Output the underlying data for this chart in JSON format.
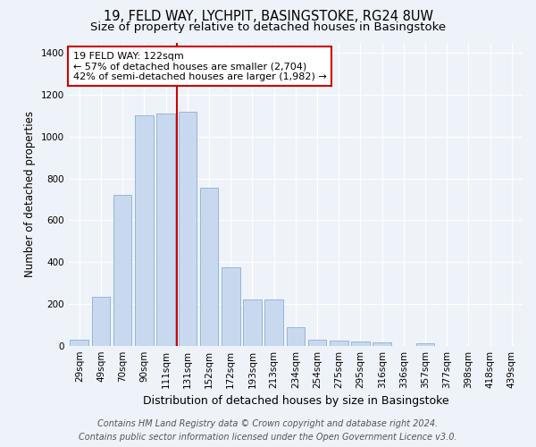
{
  "title": "19, FELD WAY, LYCHPIT, BASINGSTOKE, RG24 8UW",
  "subtitle": "Size of property relative to detached houses in Basingstoke",
  "xlabel": "Distribution of detached houses by size in Basingstoke",
  "ylabel": "Number of detached properties",
  "footer_line1": "Contains HM Land Registry data © Crown copyright and database right 2024.",
  "footer_line2": "Contains public sector information licensed under the Open Government Licence v3.0.",
  "bar_labels": [
    "29sqm",
    "49sqm",
    "70sqm",
    "90sqm",
    "111sqm",
    "131sqm",
    "152sqm",
    "172sqm",
    "193sqm",
    "213sqm",
    "234sqm",
    "254sqm",
    "275sqm",
    "295sqm",
    "316sqm",
    "336sqm",
    "357sqm",
    "377sqm",
    "398sqm",
    "418sqm",
    "439sqm"
  ],
  "bar_values": [
    30,
    235,
    720,
    1100,
    1110,
    1120,
    755,
    375,
    220,
    220,
    90,
    30,
    25,
    22,
    15,
    0,
    12,
    0,
    0,
    0,
    0
  ],
  "bar_color": "#c8d9ef",
  "bar_edge_color": "#8aaed4",
  "vline_color": "#cc0000",
  "annotation_line1": "19 FELD WAY: 122sqm",
  "annotation_line2": "← 57% of detached houses are smaller (2,704)",
  "annotation_line3": "42% of semi-detached houses are larger (1,982) →",
  "annotation_box_facecolor": "white",
  "annotation_box_edgecolor": "#cc0000",
  "ylim": [
    0,
    1450
  ],
  "yticks": [
    0,
    200,
    400,
    600,
    800,
    1000,
    1200,
    1400
  ],
  "title_fontsize": 10.5,
  "subtitle_fontsize": 9.5,
  "xlabel_fontsize": 9,
  "ylabel_fontsize": 8.5,
  "tick_fontsize": 7.5,
  "footer_fontsize": 7,
  "annotation_fontsize": 8,
  "background_color": "#eef2f9",
  "grid_color": "#ffffff"
}
